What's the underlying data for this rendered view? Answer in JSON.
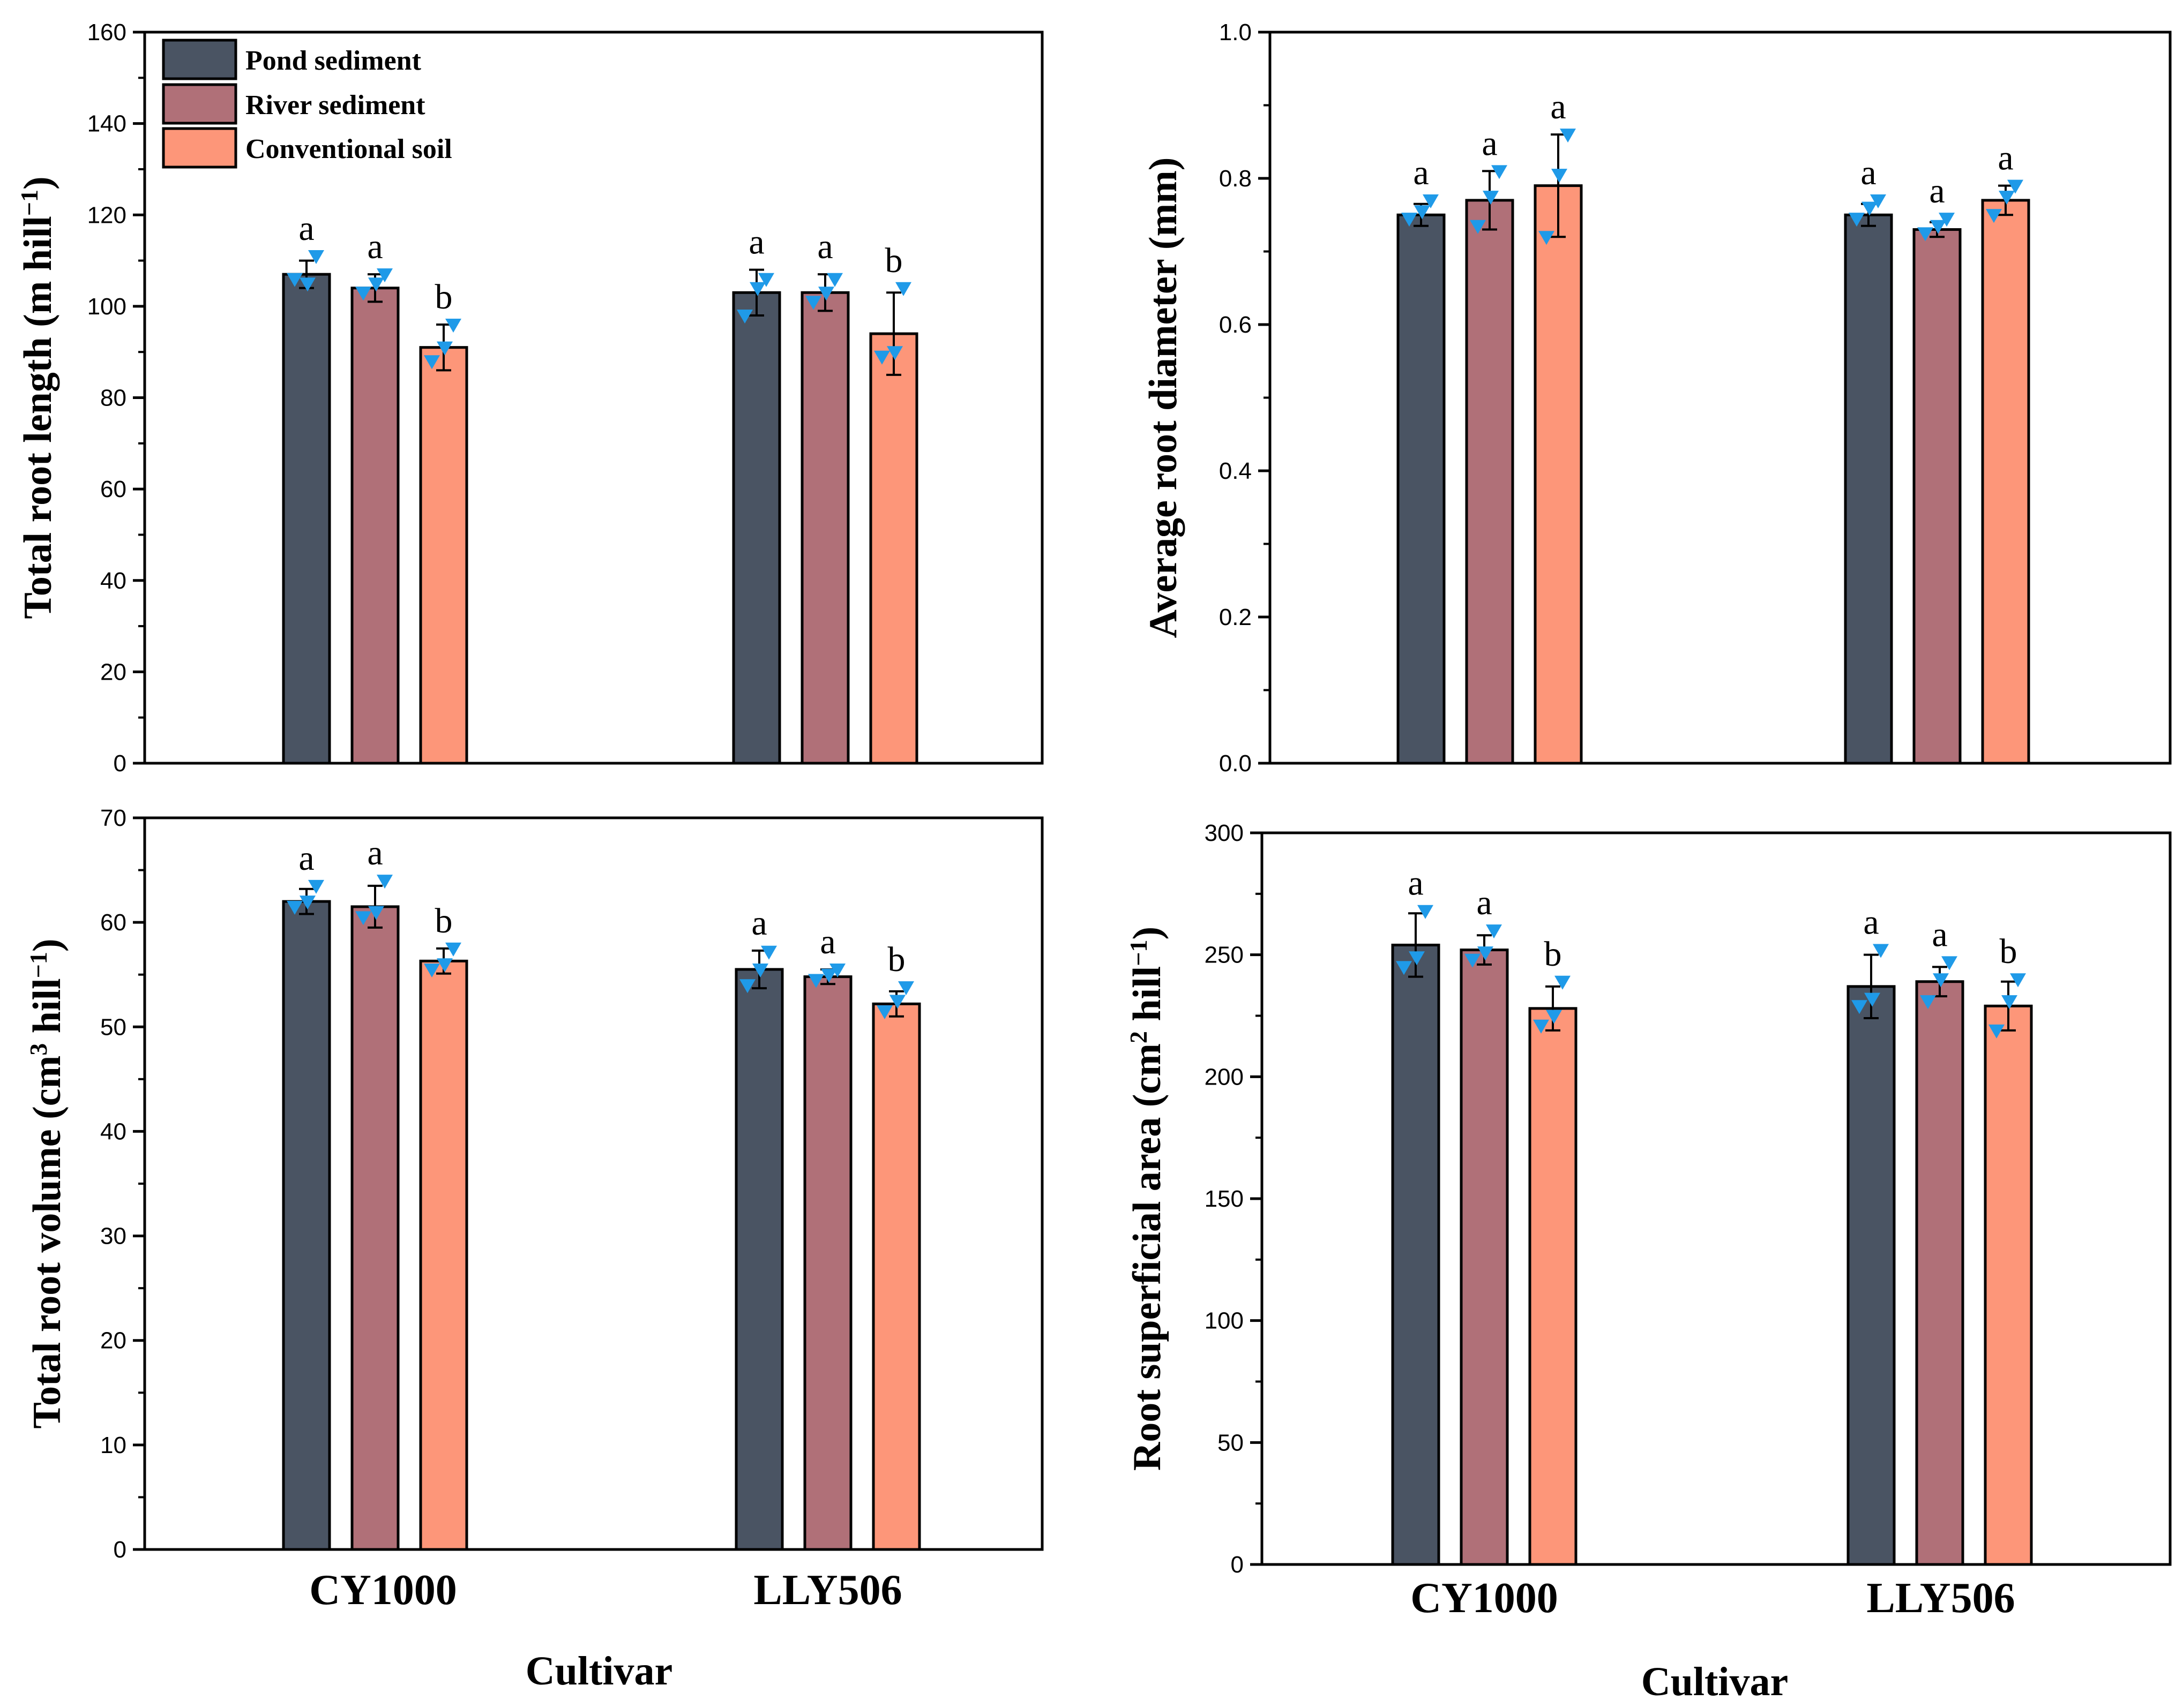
{
  "colors": {
    "pond": "#4a5463",
    "river": "#b07078",
    "conventional": "#fd9679",
    "points": "#1f9ae8",
    "axis": "#000000"
  },
  "legend": {
    "items": [
      "Pond sediment",
      "River sediment",
      "Conventional soil"
    ]
  },
  "chart_data": [
    {
      "type": "bar",
      "panel": "top-left",
      "ylabel": "Total root length (m hill⁻¹)",
      "ylabel_base": "Total root length (m hill",
      "ylabel_sup": "−1",
      "ylabel_end": ")",
      "ylim": [
        0,
        160
      ],
      "yticks": [
        "0",
        "20",
        "40",
        "60",
        "80",
        "100",
        "120",
        "140",
        "160"
      ],
      "categories": [
        "CY1000",
        "LLY506"
      ],
      "series": [
        {
          "name": "Pond sediment",
          "values": [
            107,
            103
          ],
          "errors": [
            3,
            5
          ],
          "letters": [
            "a",
            "a"
          ],
          "points": [
            [
              111,
              106,
              105
            ],
            [
              106,
              98,
              104
            ]
          ]
        },
        {
          "name": "River sediment",
          "values": [
            104,
            103
          ],
          "errors": [
            3,
            4
          ],
          "letters": [
            "a",
            "a"
          ],
          "points": [
            [
              107,
              103,
              105
            ],
            [
              106,
              101,
              103
            ]
          ]
        },
        {
          "name": "Conventional soil",
          "values": [
            91,
            94
          ],
          "errors": [
            5,
            9
          ],
          "letters": [
            "b",
            "b"
          ],
          "points": [
            [
              96,
              88,
              91
            ],
            [
              104,
              89,
              90
            ]
          ]
        }
      ]
    },
    {
      "type": "bar",
      "panel": "top-right",
      "ylabel": "Average root diameter (mm)",
      "ylabel_base": "Average root diameter (mm)",
      "ylabel_sup": "",
      "ylabel_end": "",
      "ylim": [
        0.0,
        1.0
      ],
      "yticks": [
        "0.0",
        "0.2",
        "0.4",
        "0.6",
        "0.8",
        "1.0"
      ],
      "categories": [
        "CY1000",
        "LLY506"
      ],
      "series": [
        {
          "name": "Pond sediment",
          "values": [
            0.75,
            0.75
          ],
          "errors": [
            0.015,
            0.015
          ],
          "letters": [
            "a",
            "a"
          ],
          "points": [
            [
              0.77,
              0.745,
              0.755
            ],
            [
              0.77,
              0.745,
              0.76
            ]
          ]
        },
        {
          "name": "River sediment",
          "values": [
            0.77,
            0.73
          ],
          "errors": [
            0.04,
            0.01
          ],
          "letters": [
            "a",
            "a"
          ],
          "points": [
            [
              0.81,
              0.735,
              0.775
            ],
            [
              0.745,
              0.725,
              0.735
            ]
          ]
        },
        {
          "name": "Conventional soil",
          "values": [
            0.79,
            0.77
          ],
          "errors": [
            0.07,
            0.02
          ],
          "letters": [
            "a",
            "a"
          ],
          "points": [
            [
              0.86,
              0.72,
              0.805
            ],
            [
              0.79,
              0.75,
              0.775
            ]
          ]
        }
      ]
    },
    {
      "type": "bar",
      "panel": "bottom-left",
      "ylabel": "Total root volume (cm³ hill⁻¹)",
      "ylabel_base": "Total root volume (cm",
      "ylabel_sup": "3",
      "ylabel_mid": " hill",
      "ylabel_sup2": "−1",
      "ylabel_end": ")",
      "ylim": [
        0,
        70
      ],
      "yticks": [
        "0",
        "10",
        "20",
        "30",
        "40",
        "50",
        "60",
        "70"
      ],
      "categories": [
        "CY1000",
        "LLY506"
      ],
      "series": [
        {
          "name": "Pond sediment",
          "values": [
            62,
            55.5
          ],
          "errors": [
            1.2,
            1.8
          ],
          "letters": [
            "a",
            "a"
          ],
          "points": [
            [
              63.5,
              61.5,
              62
            ],
            [
              57.2,
              54,
              55.5
            ]
          ]
        },
        {
          "name": "River sediment",
          "values": [
            61.5,
            54.8
          ],
          "errors": [
            2,
            0.7
          ],
          "letters": [
            "a",
            "a"
          ],
          "points": [
            [
              64,
              60.5,
              61
            ],
            [
              55.5,
              54.5,
              55
            ]
          ]
        },
        {
          "name": "Conventional soil",
          "values": [
            56.3,
            52.2
          ],
          "errors": [
            1.2,
            1.2
          ],
          "letters": [
            "b",
            "b"
          ],
          "points": [
            [
              57.5,
              55.5,
              56
            ],
            [
              53.8,
              51.5,
              52.5
            ]
          ]
        }
      ]
    },
    {
      "type": "bar",
      "panel": "bottom-right",
      "ylabel": "Root superficial area (cm² hill⁻¹)",
      "ylabel_base": "Root superficial area (cm",
      "ylabel_sup": "2",
      "ylabel_mid": " hill",
      "ylabel_sup2": "−1",
      "ylabel_end": ")",
      "xlabel": "Cultivar",
      "ylim": [
        0,
        300
      ],
      "yticks": [
        "0",
        "50",
        "100",
        "150",
        "200",
        "250",
        "300"
      ],
      "categories": [
        "CY1000",
        "LLY506"
      ],
      "series": [
        {
          "name": "Pond sediment",
          "values": [
            254,
            237
          ],
          "errors": [
            13,
            13
          ],
          "letters": [
            "a",
            "a"
          ],
          "points": [
            [
              268,
              245,
              249
            ],
            [
              252,
              229,
              232
            ]
          ]
        },
        {
          "name": "River sediment",
          "values": [
            252,
            239
          ],
          "errors": [
            6,
            6
          ],
          "letters": [
            "a",
            "a"
          ],
          "points": [
            [
              260,
              248,
              251
            ],
            [
              247,
              231,
              240
            ]
          ]
        },
        {
          "name": "Conventional soil",
          "values": [
            228,
            229
          ],
          "errors": [
            9,
            10
          ],
          "letters": [
            "b",
            "b"
          ],
          "points": [
            [
              239,
              221,
              225
            ],
            [
              240,
              219,
              231
            ]
          ]
        }
      ]
    }
  ],
  "x_axis": {
    "categories": [
      "CY1000",
      "LLY506"
    ],
    "title": "Cultivar"
  }
}
